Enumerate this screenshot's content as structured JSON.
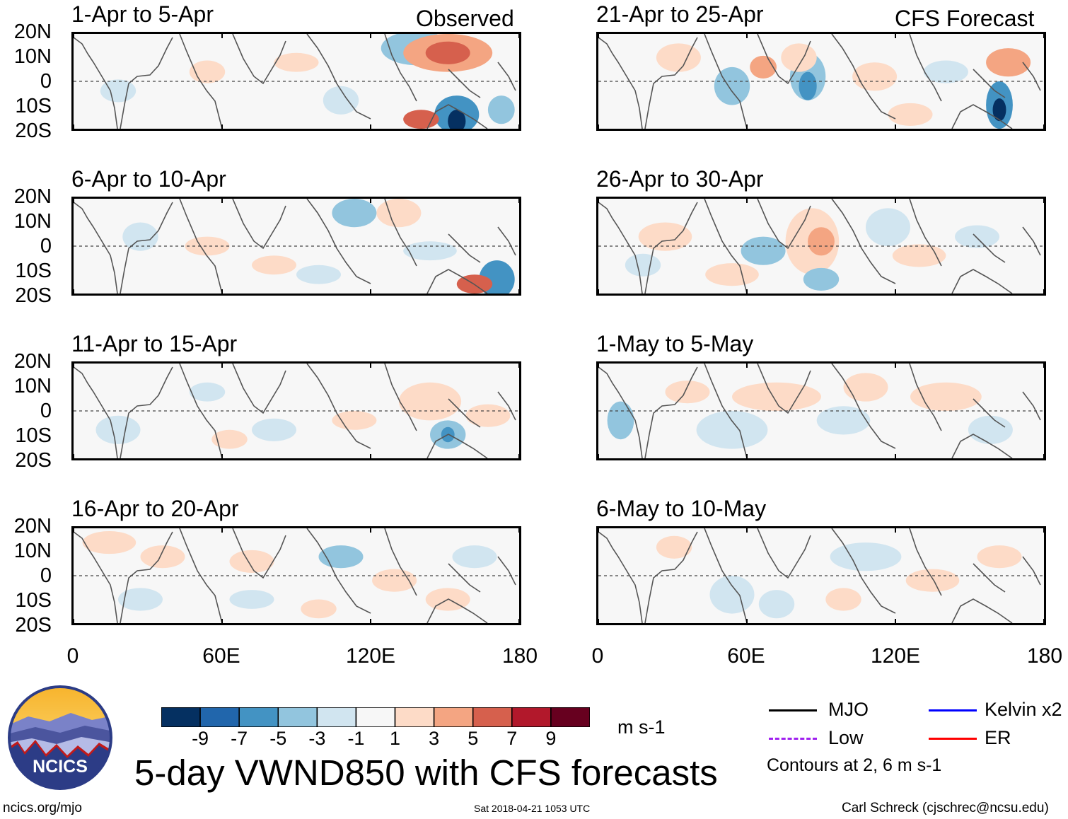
{
  "chart_data": {
    "type": "heatmap",
    "title": "5-day VWND850 with CFS forecasts",
    "units": "m s-1",
    "x_tick_labels": [
      "0",
      "60E",
      "120E",
      "180"
    ],
    "x_range": [
      0,
      180
    ],
    "y_tick_labels": [
      "20N",
      "10N",
      "0",
      "10S",
      "20S"
    ],
    "y_range": [
      -20,
      20
    ],
    "column_labels": [
      "Observed",
      "CFS Forecast"
    ],
    "panels": [
      {
        "title": "1-Apr to 5-Apr",
        "column": "Observed"
      },
      {
        "title": "6-Apr to 10-Apr",
        "column": "Observed"
      },
      {
        "title": "11-Apr to 15-Apr",
        "column": "Observed"
      },
      {
        "title": "16-Apr to 20-Apr",
        "column": "Observed"
      },
      {
        "title": "21-Apr to 25-Apr",
        "column": "CFS Forecast"
      },
      {
        "title": "26-Apr to 30-Apr",
        "column": "CFS Forecast"
      },
      {
        "title": "1-May to 5-May",
        "column": "CFS Forecast"
      },
      {
        "title": "6-May to 10-May",
        "column": "CFS Forecast"
      }
    ],
    "colorbar": {
      "labels": [
        "-9",
        "-7",
        "-5",
        "-3",
        "-1",
        "1",
        "3",
        "5",
        "7",
        "9"
      ],
      "colors": [
        "#053061",
        "#2166ac",
        "#4393c3",
        "#92c5de",
        "#d1e5f0",
        "#f7f7f7",
        "#fddbc7",
        "#f4a582",
        "#d6604d",
        "#b2182b",
        "#67001f"
      ]
    },
    "legend": [
      {
        "label": "MJO",
        "color": "#000000",
        "style": "solid"
      },
      {
        "label": "Kelvin x2",
        "color": "#0000ff",
        "style": "solid"
      },
      {
        "label": "Low",
        "color": "#a020f0",
        "style": "dashed"
      },
      {
        "label": "ER",
        "color": "#ff0000",
        "style": "solid"
      }
    ],
    "contour_note": "Contours at 2, 6 m s-1"
  },
  "logo": {
    "text": "NCICS"
  },
  "footer": {
    "left": "ncics.org/mjo",
    "center": "Sat 2018-04-21 1053 UTC",
    "right": "Carl Schreck (cjschrec@ncsu.edu)"
  }
}
